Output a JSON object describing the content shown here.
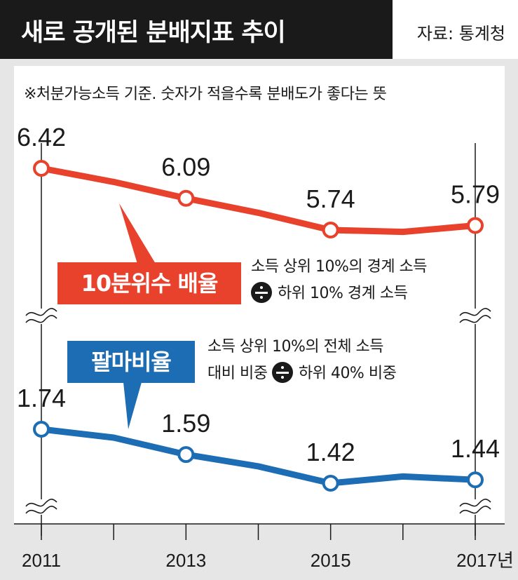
{
  "header": {
    "title": "새로 공개된 분배지표 추이",
    "source": "자료: 통계청"
  },
  "note": "※처분가능소득 기준. 숫자가 적을수록 분배도가 좋다는 뜻",
  "colors": {
    "red": "#e8412c",
    "blue": "#1c6db3",
    "title_bg": "#1a1a1a",
    "plot_bg": "#ffffff",
    "panel_bg": "#e6e6e6"
  },
  "legend": {
    "red_label": "10분위수 배율",
    "red_desc_line1": "소득 상위 10%의 경계 소득",
    "red_desc_line2": "하위 10% 경계 소득",
    "blue_label": "팔마비율",
    "blue_desc_line1": "소득 상위 10%의 전체 소득",
    "blue_desc_line2_a": "대비 비중",
    "blue_desc_line2_b": "하위 40% 비중"
  },
  "chart_data": {
    "type": "line",
    "x": [
      2011,
      2012,
      2013,
      2014,
      2015,
      2016,
      2017
    ],
    "x_tick_labels": [
      "2011",
      "2013",
      "2015",
      "2017년"
    ],
    "x_tick_values": [
      2011,
      2013,
      2015,
      2017
    ],
    "series": [
      {
        "name": "10분위수 배율",
        "color": "#e8412c",
        "values": [
          6.42,
          6.27,
          6.09,
          5.93,
          5.74,
          5.72,
          5.79
        ],
        "labeled": [
          {
            "x": 2011,
            "label": "6.42"
          },
          {
            "x": 2013,
            "label": "6.09"
          },
          {
            "x": 2015,
            "label": "5.74"
          },
          {
            "x": 2017,
            "label": "5.79"
          }
        ]
      },
      {
        "name": "팔마비율",
        "color": "#1c6db3",
        "values": [
          1.74,
          1.69,
          1.59,
          1.52,
          1.42,
          1.46,
          1.44
        ],
        "labeled": [
          {
            "x": 2011,
            "label": "1.74"
          },
          {
            "x": 2013,
            "label": "1.59"
          },
          {
            "x": 2015,
            "label": "1.42"
          },
          {
            "x": 2017,
            "label": "1.44"
          }
        ]
      }
    ],
    "axis_break": true,
    "grid": false
  }
}
